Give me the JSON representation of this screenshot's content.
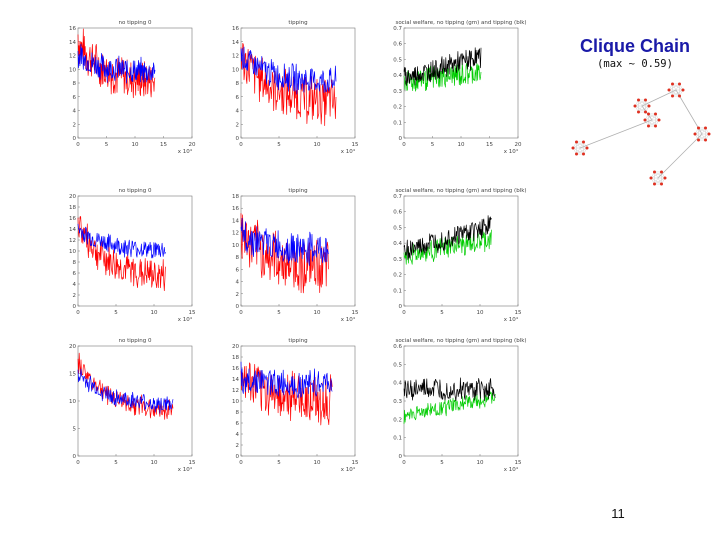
{
  "slide": {
    "title": "Clique Chain",
    "subtitle": "(max ~ 0.59)",
    "page_number": "11"
  },
  "chart_data": [
    {
      "type": "line",
      "title": "no tipping 0",
      "xlim": [
        0,
        20
      ],
      "ylim": [
        0,
        16
      ],
      "x_ticks": [
        "0",
        "5",
        "10",
        "15",
        "20"
      ],
      "y_ticks": [
        "0",
        "2",
        "4",
        "6",
        "8",
        "10",
        "12",
        "14",
        "16"
      ],
      "x_multiplier": "x 10⁴",
      "series": [
        {
          "color": "#ff0000",
          "style": "noisy-decline",
          "start": 14,
          "end": 8,
          "amp": 3.5,
          "xmax": 13.5
        },
        {
          "color": "#0000ff",
          "style": "noisy-decline",
          "start": 12,
          "end": 9.5,
          "amp": 2.2,
          "xmax": 13.5
        }
      ]
    },
    {
      "type": "line",
      "title": "tipping",
      "xlim": [
        0,
        15
      ],
      "ylim": [
        0,
        16
      ],
      "x_ticks": [
        "0",
        "5",
        "10",
        "15"
      ],
      "y_ticks": [
        "0",
        "2",
        "4",
        "6",
        "8",
        "10",
        "12",
        "14",
        "16"
      ],
      "x_multiplier": "x 10⁴",
      "series": [
        {
          "color": "#ff0000",
          "style": "noisy-decline",
          "start": 12,
          "end": 5,
          "amp": 4,
          "xmax": 12.5
        },
        {
          "color": "#0000ff",
          "style": "noisy-decline",
          "start": 12,
          "end": 8,
          "amp": 2.4,
          "xmax": 12.5
        }
      ]
    },
    {
      "type": "line",
      "title": "social welfare, no tipping (gm) and tipping (blk)",
      "xlim": [
        0,
        20
      ],
      "ylim": [
        0,
        0.7
      ],
      "x_ticks": [
        "0",
        "5",
        "10",
        "15",
        "20"
      ],
      "y_ticks": [
        "0",
        "0.1",
        "0.2",
        "0.3",
        "0.4",
        "0.5",
        "0.6",
        "0.7"
      ],
      "x_multiplier": "x 10⁴",
      "series": [
        {
          "color": "#00cc00",
          "style": "noisy-rise",
          "start": 0.36,
          "end": 0.42,
          "amp": 0.09,
          "xmax": 13.5
        },
        {
          "color": "#000000",
          "style": "noisy-rise",
          "start": 0.38,
          "end": 0.52,
          "amp": 0.08,
          "xmax": 13.5
        }
      ]
    },
    {
      "type": "line",
      "title": "no tipping 0",
      "xlim": [
        0,
        15
      ],
      "ylim": [
        0,
        20
      ],
      "x_ticks": [
        "0",
        "5",
        "10",
        "15"
      ],
      "y_ticks": [
        "0",
        "2",
        "4",
        "6",
        "8",
        "10",
        "12",
        "14",
        "16",
        "18",
        "20"
      ],
      "x_multiplier": "x 10⁴",
      "series": [
        {
          "color": "#ff0000",
          "style": "noisy-decline",
          "start": 15,
          "end": 5,
          "amp": 3.5,
          "xmax": 11.5
        },
        {
          "color": "#0000ff",
          "style": "noisy-decline",
          "start": 14,
          "end": 10,
          "amp": 2,
          "xmax": 11.5
        }
      ]
    },
    {
      "type": "line",
      "title": "tipping",
      "xlim": [
        0,
        15
      ],
      "ylim": [
        0,
        18
      ],
      "x_ticks": [
        "0",
        "5",
        "10",
        "15"
      ],
      "y_ticks": [
        "0",
        "2",
        "4",
        "6",
        "8",
        "10",
        "12",
        "14",
        "16",
        "18"
      ],
      "x_multiplier": "x 10⁴",
      "series": [
        {
          "color": "#ff0000",
          "style": "noisy-decline",
          "start": 12,
          "end": 6,
          "amp": 5,
          "xmax": 11.5
        },
        {
          "color": "#0000ff",
          "style": "noisy-decline",
          "start": 12,
          "end": 9,
          "amp": 3,
          "xmax": 11.5
        }
      ]
    },
    {
      "type": "line",
      "title": "social welfare, no tipping (gm) and tipping (blk)",
      "xlim": [
        0,
        15
      ],
      "ylim": [
        0,
        0.7
      ],
      "x_ticks": [
        "0",
        "5",
        "10",
        "15"
      ],
      "y_ticks": [
        "0",
        "0.1",
        "0.2",
        "0.3",
        "0.4",
        "0.5",
        "0.6",
        "0.7"
      ],
      "x_multiplier": "x 10⁴",
      "series": [
        {
          "color": "#00cc00",
          "style": "noisy-rise",
          "start": 0.32,
          "end": 0.42,
          "amp": 0.08,
          "xmax": 11.5
        },
        {
          "color": "#000000",
          "style": "noisy-rise",
          "start": 0.35,
          "end": 0.52,
          "amp": 0.08,
          "xmax": 11.5
        }
      ]
    },
    {
      "type": "line",
      "title": "no tipping 0",
      "xlim": [
        0,
        15
      ],
      "ylim": [
        0,
        20
      ],
      "x_ticks": [
        "0",
        "5",
        "10",
        "15"
      ],
      "y_ticks": [
        "0",
        "5",
        "10",
        "15",
        "20"
      ],
      "x_multiplier": "x 10⁴",
      "series": [
        {
          "color": "#ff0000",
          "style": "noisy-decline",
          "start": 17,
          "end": 8,
          "amp": 2.2,
          "xmax": 12.5
        },
        {
          "color": "#0000ff",
          "style": "noisy-decline",
          "start": 15,
          "end": 9,
          "amp": 1.8,
          "xmax": 12.5
        }
      ]
    },
    {
      "type": "line",
      "title": "tipping",
      "xlim": [
        0,
        15
      ],
      "ylim": [
        0,
        20
      ],
      "x_ticks": [
        "0",
        "5",
        "10",
        "15"
      ],
      "y_ticks": [
        "0",
        "2",
        "4",
        "6",
        "8",
        "10",
        "12",
        "14",
        "16",
        "18",
        "20"
      ],
      "x_multiplier": "x 10⁴",
      "series": [
        {
          "color": "#ff0000",
          "style": "noisy-decline",
          "start": 14,
          "end": 10,
          "amp": 5,
          "xmax": 12
        },
        {
          "color": "#0000ff",
          "style": "noisy-decline",
          "start": 14,
          "end": 13,
          "amp": 3,
          "xmax": 12
        }
      ]
    },
    {
      "type": "line",
      "title": "social welfare, no tipping (gm) and tipping (blk)",
      "xlim": [
        0,
        15
      ],
      "ylim": [
        0,
        0.6
      ],
      "x_ticks": [
        "0",
        "5",
        "10",
        "15"
      ],
      "y_ticks": [
        "0",
        "0.1",
        "0.2",
        "0.3",
        "0.4",
        "0.5",
        "0.6"
      ],
      "x_multiplier": "x 10⁴",
      "series": [
        {
          "color": "#00cc00",
          "style": "noisy-rise",
          "start": 0.22,
          "end": 0.32,
          "amp": 0.05,
          "xmax": 12
        },
        {
          "color": "#000000",
          "style": "noisy-rise",
          "start": 0.36,
          "end": 0.36,
          "amp": 0.07,
          "xmax": 12
        }
      ]
    }
  ]
}
